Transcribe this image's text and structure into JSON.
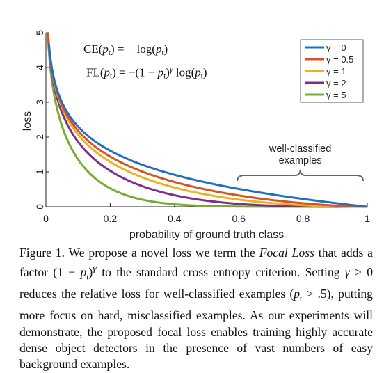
{
  "chart_data": {
    "type": "line",
    "xlabel": "probability of ground truth class",
    "ylabel": "loss",
    "xlim": [
      0,
      1
    ],
    "ylim": [
      0,
      5
    ],
    "x_ticks": [
      "0",
      "0.2",
      "0.4",
      "0.6",
      "0.8",
      "1"
    ],
    "y_ticks": [
      "0",
      "1",
      "2",
      "3",
      "4",
      "5"
    ],
    "legend_position": "top-right",
    "series": [
      {
        "name": "γ = 0",
        "gamma": 0,
        "color": "#1f6fc5"
      },
      {
        "name": "γ = 0.5",
        "gamma": 0.5,
        "color": "#d9531e"
      },
      {
        "name": "γ = 1",
        "gamma": 1,
        "color": "#edb120"
      },
      {
        "name": "γ = 2",
        "gamma": 2,
        "color": "#7e2f8e"
      },
      {
        "name": "γ = 5",
        "gamma": 5,
        "color": "#77ac30"
      }
    ],
    "annotation": {
      "line1": "well-classified",
      "line2": "examples",
      "x_range": [
        0.6,
        1
      ]
    },
    "equations": {
      "ce": {
        "lhs": "CE(",
        "p": "p",
        "t": "t",
        "rhs_a": ") = − log(",
        "rhs_b": ")"
      },
      "fl": {
        "lhs": "FL(",
        "p": "p",
        "t": "t",
        "rhs_a": ") = −(1 − ",
        "rhs_b": ")",
        "gamma": "γ",
        "rhs_c": " log(",
        "rhs_d": ")"
      }
    }
  },
  "caption": {
    "label": "Figure 1.",
    "t1": " We propose a novel loss we term the ",
    "focal_italic": "Focal Loss",
    "t2": " that adds a factor (1 − ",
    "p": "p",
    "t": "t",
    "t3": ")",
    "gamma": "γ",
    "t4": " to the standard cross entropy criterion. Setting ",
    "gamma2": "γ",
    "t5": " > 0 reduces the relative loss for well-classified examples (",
    "p2": "p",
    "t6": "t",
    "t7": " > .5), putting more focus on hard, misclassified examples. As our experiments will demonstrate, the proposed focal loss enables training highly accurate dense object detectors in the presence of vast numbers of easy background examples."
  }
}
